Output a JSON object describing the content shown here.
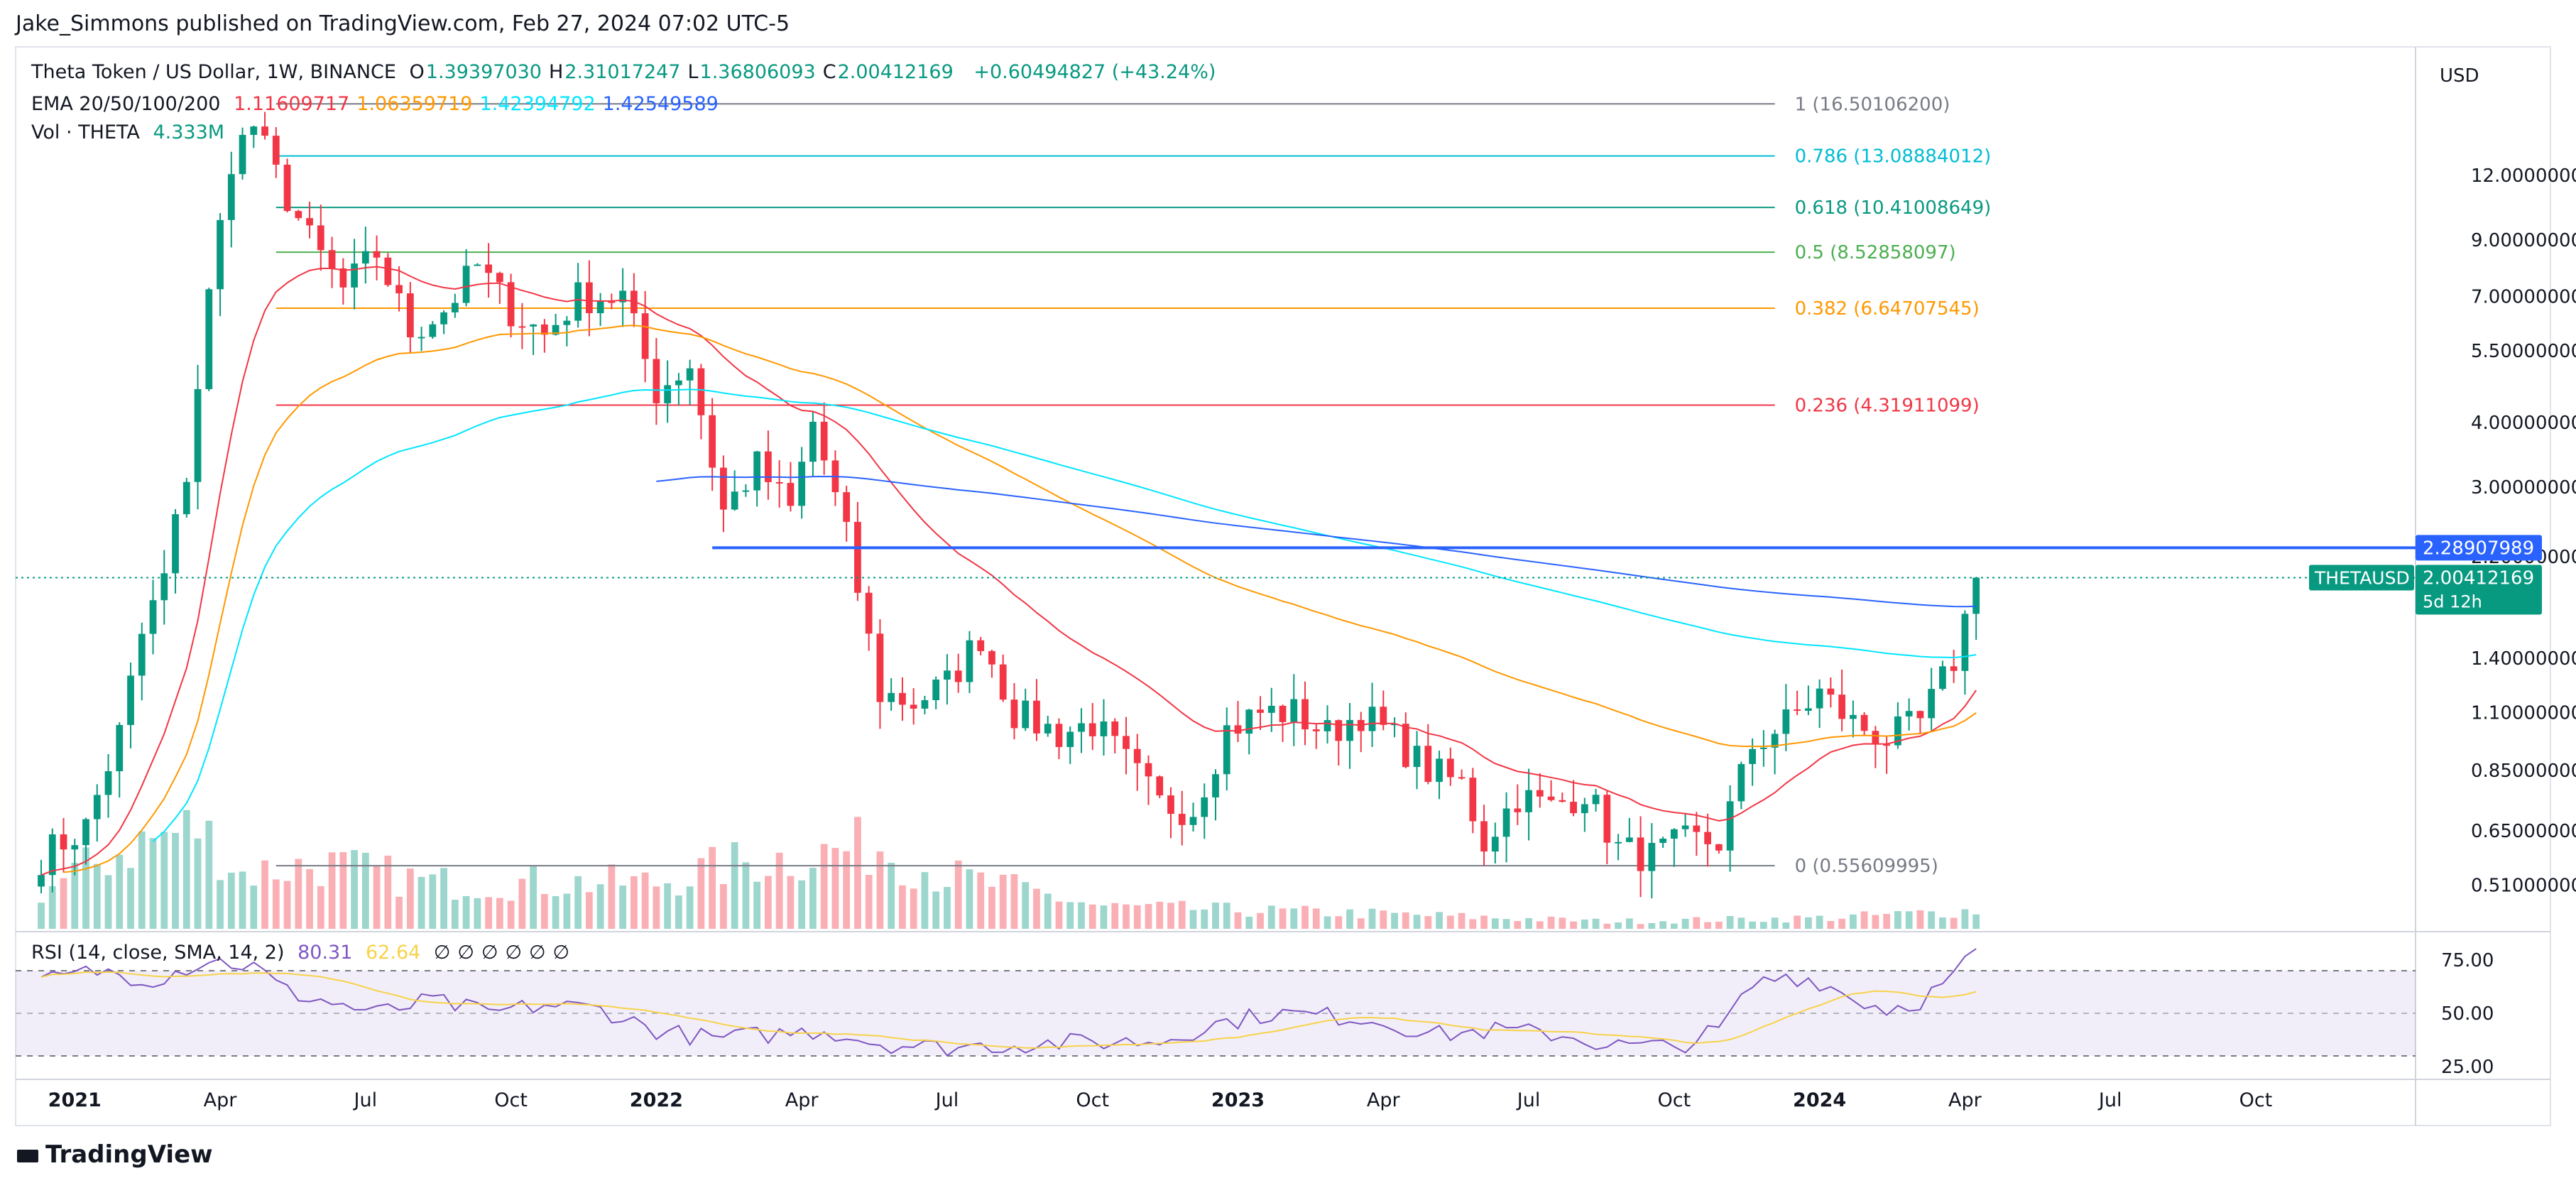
{
  "header": {
    "publisher": "Jake_Simmons published on TradingView.com, Feb 27, 2024 07:02 UTC-5"
  },
  "legend": {
    "symbol": "Theta Token / US Dollar, 1W, BINANCE",
    "ohlc": [
      {
        "label": "O",
        "value": "1.39397030"
      },
      {
        "label": "H",
        "value": "2.31017247"
      },
      {
        "label": "L",
        "value": "1.36806093"
      },
      {
        "label": "C",
        "value": "2.00412169"
      }
    ],
    "change": "+0.60494827 (+43.24%)",
    "ema_label": "EMA 20/50/100/200",
    "ema_values": [
      {
        "value": "1.11609717",
        "color": "#f23645"
      },
      {
        "value": "1.06359719",
        "color": "#ff9800"
      },
      {
        "value": "1.42394792",
        "color": "#00e5ff"
      },
      {
        "value": "1.42549589",
        "color": "#2962ff"
      }
    ],
    "vol_label": "Vol · THETA",
    "vol_value": "4.333M",
    "rsi_label": "RSI (14, close, SMA, 14, 2)",
    "rsi_value": "80.31",
    "rsi_sma_value": "62.64",
    "rsi_extras": [
      "∅",
      "∅",
      "∅",
      "∅",
      "∅",
      "∅"
    ]
  },
  "currency": "USD",
  "brand": "TradingView",
  "chart_data": {
    "type": "candlestick",
    "title": "Theta Token / US Dollar, 1W, BINANCE",
    "price_scale": "log",
    "y_range": [
      0.42,
      21.0
    ],
    "y_ticks": [
      "12.00000000",
      "9.00000000",
      "7.00000000",
      "5.50000000",
      "4.00000000",
      "3.00000000",
      "2.20000000",
      "1.40000000",
      "1.10000000",
      "0.85000000",
      "0.65000000",
      "0.51000000"
    ],
    "x_ticks": [
      "2021",
      "Apr",
      "Jul",
      "Oct",
      "2022",
      "Apr",
      "Jul",
      "Oct",
      "2023",
      "Apr",
      "Jul",
      "Oct",
      "2024",
      "Apr",
      "Jul",
      "Oct"
    ],
    "x_tick_weeks": [
      3,
      16,
      29,
      42,
      55,
      68,
      81,
      94,
      107,
      120,
      133,
      146,
      159,
      172,
      185,
      198
    ],
    "total_weeks": 210,
    "last_week": 173,
    "fib_levels": [
      {
        "label": "1 (16.50106200)",
        "price": 16.501062,
        "color": "#787b86"
      },
      {
        "label": "0.786 (13.08884012)",
        "price": 13.08884012,
        "color": "#00bcd4"
      },
      {
        "label": "0.618 (10.41008649)",
        "price": 10.41008649,
        "color": "#089981"
      },
      {
        "label": "0.5 (8.52858097)",
        "price": 8.52858097,
        "color": "#4caf50"
      },
      {
        "label": "0.382 (6.64707545)",
        "price": 6.64707545,
        "color": "#ff9800"
      },
      {
        "label": "0.236 (4.31911099)",
        "price": 4.31911099,
        "color": "#f23645"
      },
      {
        "label": "0 (0.55609995)",
        "price": 0.55609995,
        "color": "#787b86"
      }
    ],
    "fib_start_week": 21,
    "resistance": {
      "price": 2.28907989,
      "label": "2.28907989",
      "start_week": 60
    },
    "last_price": {
      "price": 2.00412169,
      "label": "2.00412169",
      "tag": "THETAUSD",
      "countdown": "5d 12h"
    },
    "anchors": [
      {
        "w": 0,
        "p": 0.58
      },
      {
        "w": 4,
        "p": 0.66
      },
      {
        "w": 7,
        "p": 1.0
      },
      {
        "w": 9,
        "p": 1.55
      },
      {
        "w": 11,
        "p": 2.0
      },
      {
        "w": 13,
        "p": 3.2
      },
      {
        "w": 15,
        "p": 7.0
      },
      {
        "w": 17,
        "p": 13.0
      },
      {
        "w": 19,
        "p": 15.0
      },
      {
        "w": 21,
        "p": 12.0
      },
      {
        "w": 24,
        "p": 9.0
      },
      {
        "w": 27,
        "p": 7.2
      },
      {
        "w": 30,
        "p": 8.5
      },
      {
        "w": 33,
        "p": 6.0
      },
      {
        "w": 36,
        "p": 6.6
      },
      {
        "w": 39,
        "p": 8.0
      },
      {
        "w": 42,
        "p": 6.6
      },
      {
        "w": 45,
        "p": 5.9
      },
      {
        "w": 48,
        "p": 7.0
      },
      {
        "w": 52,
        "p": 7.0
      },
      {
        "w": 55,
        "p": 4.6
      },
      {
        "w": 58,
        "p": 5.2
      },
      {
        "w": 61,
        "p": 2.7
      },
      {
        "w": 64,
        "p": 3.3
      },
      {
        "w": 67,
        "p": 2.7
      },
      {
        "w": 69,
        "p": 4.0
      },
      {
        "w": 72,
        "p": 2.4
      },
      {
        "w": 75,
        "p": 1.2
      },
      {
        "w": 78,
        "p": 1.15
      },
      {
        "w": 81,
        "p": 1.25
      },
      {
        "w": 84,
        "p": 1.55
      },
      {
        "w": 87,
        "p": 1.1
      },
      {
        "w": 91,
        "p": 1.0
      },
      {
        "w": 94,
        "p": 1.05
      },
      {
        "w": 97,
        "p": 0.88
      },
      {
        "w": 100,
        "p": 0.73
      },
      {
        "w": 103,
        "p": 0.72
      },
      {
        "w": 106,
        "p": 1.02
      },
      {
        "w": 109,
        "p": 1.1
      },
      {
        "w": 112,
        "p": 1.1
      },
      {
        "w": 115,
        "p": 1.0
      },
      {
        "w": 118,
        "p": 1.1
      },
      {
        "w": 121,
        "p": 0.98
      },
      {
        "w": 124,
        "p": 0.85
      },
      {
        "w": 127,
        "p": 0.8
      },
      {
        "w": 129,
        "p": 0.62
      },
      {
        "w": 132,
        "p": 0.76
      },
      {
        "w": 135,
        "p": 0.72
      },
      {
        "w": 138,
        "p": 0.78
      },
      {
        "w": 141,
        "p": 0.6
      },
      {
        "w": 144,
        "p": 0.58
      },
      {
        "w": 147,
        "p": 0.62
      },
      {
        "w": 150,
        "p": 0.62
      },
      {
        "w": 153,
        "p": 0.95
      },
      {
        "w": 156,
        "p": 1.05
      },
      {
        "w": 159,
        "p": 1.2
      },
      {
        "w": 162,
        "p": 1.05
      },
      {
        "w": 165,
        "p": 0.98
      },
      {
        "w": 168,
        "p": 1.05
      },
      {
        "w": 171,
        "p": 1.39
      },
      {
        "w": 173,
        "p": 2.0
      }
    ],
    "volume_profile": [
      {
        "w": 0,
        "v": 0.2
      },
      {
        "w": 8,
        "v": 0.45
      },
      {
        "w": 14,
        "v": 0.55
      },
      {
        "w": 18,
        "v": 0.3
      },
      {
        "w": 25,
        "v": 0.35
      },
      {
        "w": 35,
        "v": 0.25
      },
      {
        "w": 55,
        "v": 0.25
      },
      {
        "w": 62,
        "v": 0.35
      },
      {
        "w": 75,
        "v": 0.45
      },
      {
        "w": 80,
        "v": 0.3
      },
      {
        "w": 95,
        "v": 0.12
      },
      {
        "w": 120,
        "v": 0.08
      },
      {
        "w": 140,
        "v": 0.04
      },
      {
        "w": 160,
        "v": 0.06
      },
      {
        "w": 173,
        "v": 0.1
      }
    ],
    "rsi_scale": [
      25,
      50,
      75
    ],
    "rsi_band": [
      30,
      70
    ],
    "rsi_anchors": [
      {
        "w": 0,
        "v": 65
      },
      {
        "w": 5,
        "v": 70
      },
      {
        "w": 10,
        "v": 66
      },
      {
        "w": 15,
        "v": 75
      },
      {
        "w": 19,
        "v": 72
      },
      {
        "w": 22,
        "v": 60
      },
      {
        "w": 26,
        "v": 55
      },
      {
        "w": 30,
        "v": 50
      },
      {
        "w": 35,
        "v": 56
      },
      {
        "w": 40,
        "v": 50
      },
      {
        "w": 45,
        "v": 54
      },
      {
        "w": 50,
        "v": 52
      },
      {
        "w": 55,
        "v": 42
      },
      {
        "w": 60,
        "v": 38
      },
      {
        "w": 65,
        "v": 40
      },
      {
        "w": 70,
        "v": 42
      },
      {
        "w": 75,
        "v": 36
      },
      {
        "w": 80,
        "v": 34
      },
      {
        "w": 90,
        "v": 36
      },
      {
        "w": 100,
        "v": 37
      },
      {
        "w": 105,
        "v": 45
      },
      {
        "w": 110,
        "v": 50
      },
      {
        "w": 118,
        "v": 48
      },
      {
        "w": 125,
        "v": 40
      },
      {
        "w": 130,
        "v": 42
      },
      {
        "w": 136,
        "v": 40
      },
      {
        "w": 140,
        "v": 35
      },
      {
        "w": 146,
        "v": 34
      },
      {
        "w": 150,
        "v": 42
      },
      {
        "w": 153,
        "v": 63
      },
      {
        "w": 156,
        "v": 68
      },
      {
        "w": 159,
        "v": 65
      },
      {
        "w": 162,
        "v": 57
      },
      {
        "w": 165,
        "v": 52
      },
      {
        "w": 168,
        "v": 56
      },
      {
        "w": 171,
        "v": 67
      },
      {
        "w": 173,
        "v": 80
      }
    ]
  }
}
